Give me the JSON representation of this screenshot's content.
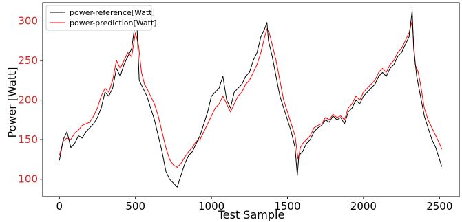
{
  "chart_data": {
    "type": "line",
    "xlabel": "Test Sample",
    "ylabel": "Power [Watt]",
    "xlim": [
      -110,
      2630
    ],
    "ylim": [
      78,
      323
    ],
    "xticks": [
      0,
      500,
      1000,
      1500,
      2000,
      2500
    ],
    "yticks": [
      100,
      150,
      200,
      250,
      300
    ],
    "x_tick_labels": [
      "0",
      "500",
      "1000",
      "1500",
      "2000",
      "2500"
    ],
    "y_tick_labels": [
      "100",
      "150",
      "200",
      "250",
      "300"
    ],
    "grid": false,
    "legend_position": "top-left",
    "colors": {
      "reference": "#000000",
      "prediction": "#ff0000",
      "ytick": "#d62728"
    },
    "series": [
      {
        "name": "power-reference[Watt]",
        "x": [
          0,
          25,
          50,
          75,
          100,
          125,
          150,
          175,
          200,
          225,
          250,
          275,
          300,
          325,
          350,
          375,
          400,
          425,
          450,
          475,
          500,
          510,
          525,
          550,
          575,
          600,
          625,
          650,
          675,
          700,
          725,
          750,
          775,
          800,
          825,
          850,
          875,
          900,
          925,
          950,
          975,
          1000,
          1025,
          1050,
          1075,
          1100,
          1125,
          1150,
          1175,
          1200,
          1225,
          1250,
          1275,
          1300,
          1325,
          1350,
          1365,
          1375,
          1400,
          1425,
          1450,
          1475,
          1500,
          1525,
          1550,
          1565,
          1575,
          1600,
          1625,
          1650,
          1675,
          1700,
          1725,
          1750,
          1775,
          1800,
          1825,
          1850,
          1875,
          1900,
          1925,
          1950,
          1975,
          2000,
          2025,
          2050,
          2075,
          2100,
          2125,
          2150,
          2175,
          2200,
          2225,
          2250,
          2275,
          2300,
          2320,
          2330,
          2350,
          2375,
          2400,
          2425,
          2450,
          2475,
          2500,
          2515
        ],
        "y": [
          124,
          150,
          160,
          140,
          145,
          155,
          152,
          160,
          165,
          170,
          178,
          190,
          210,
          205,
          215,
          240,
          230,
          245,
          255,
          265,
          300,
          295,
          225,
          215,
          205,
          190,
          175,
          155,
          135,
          110,
          100,
          95,
          90,
          105,
          120,
          130,
          135,
          145,
          155,
          170,
          185,
          205,
          210,
          215,
          230,
          200,
          190,
          210,
          215,
          220,
          230,
          235,
          250,
          260,
          280,
          290,
          298,
          275,
          255,
          230,
          205,
          190,
          175,
          160,
          140,
          105,
          130,
          135,
          145,
          150,
          160,
          165,
          168,
          175,
          172,
          180,
          175,
          178,
          170,
          185,
          190,
          200,
          195,
          205,
          210,
          215,
          220,
          230,
          235,
          230,
          240,
          245,
          255,
          260,
          270,
          280,
          313,
          265,
          230,
          205,
          180,
          165,
          150,
          140,
          125,
          116
        ]
      },
      {
        "name": "power-prediction[Watt]",
        "x": [
          0,
          25,
          50,
          75,
          100,
          125,
          150,
          175,
          200,
          225,
          250,
          275,
          300,
          325,
          350,
          375,
          400,
          425,
          450,
          475,
          500,
          520,
          540,
          560,
          575,
          600,
          625,
          650,
          675,
          700,
          725,
          750,
          775,
          800,
          825,
          850,
          875,
          900,
          925,
          950,
          975,
          1000,
          1025,
          1050,
          1075,
          1100,
          1125,
          1150,
          1175,
          1200,
          1225,
          1250,
          1275,
          1300,
          1325,
          1350,
          1365,
          1380,
          1400,
          1425,
          1450,
          1475,
          1500,
          1525,
          1550,
          1570,
          1585,
          1600,
          1625,
          1650,
          1675,
          1700,
          1725,
          1750,
          1775,
          1800,
          1825,
          1850,
          1875,
          1900,
          1925,
          1950,
          1975,
          2000,
          2025,
          2050,
          2075,
          2100,
          2125,
          2150,
          2175,
          2200,
          2225,
          2250,
          2275,
          2300,
          2320,
          2340,
          2360,
          2375,
          2400,
          2425,
          2450,
          2475,
          2500,
          2515
        ],
        "y": [
          130,
          148,
          152,
          150,
          158,
          162,
          168,
          170,
          172,
          180,
          190,
          205,
          215,
          210,
          225,
          250,
          240,
          250,
          260,
          255,
          285,
          270,
          235,
          220,
          215,
          205,
          195,
          180,
          160,
          140,
          125,
          118,
          115,
          120,
          128,
          135,
          140,
          148,
          150,
          160,
          170,
          180,
          190,
          195,
          205,
          195,
          185,
          195,
          205,
          210,
          220,
          225,
          235,
          245,
          260,
          280,
          290,
          285,
          270,
          250,
          225,
          200,
          185,
          170,
          155,
          125,
          140,
          145,
          150,
          155,
          165,
          168,
          170,
          178,
          175,
          182,
          178,
          180,
          175,
          190,
          195,
          205,
          200,
          210,
          215,
          220,
          225,
          235,
          240,
          235,
          245,
          250,
          260,
          265,
          275,
          285,
          300,
          245,
          235,
          220,
          190,
          175,
          165,
          155,
          145,
          138
        ]
      }
    ]
  }
}
